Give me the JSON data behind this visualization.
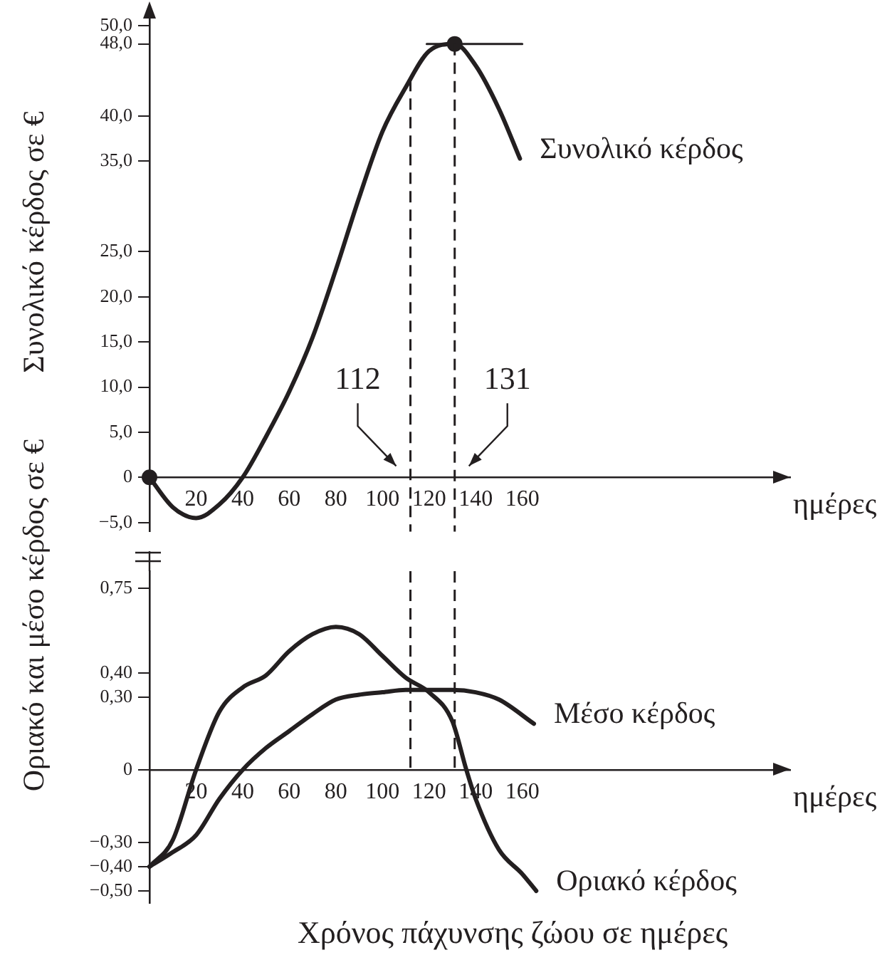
{
  "chart_data": [
    {
      "type": "line",
      "ylabel": "Συνολικό κέρδος σε €",
      "xlabel": "ημέρες",
      "xlim": [
        0,
        275
      ],
      "xticks": [
        20,
        40,
        60,
        80,
        100,
        120,
        140,
        160
      ],
      "ylim": [
        -6,
        51
      ],
      "yticks": [
        {
          "value": -5,
          "label": "−5,0"
        },
        0,
        {
          "value": 5,
          "label": "5,0"
        },
        {
          "value": 10,
          "label": "10,0"
        },
        {
          "value": 15,
          "label": "15,0"
        },
        {
          "value": 20,
          "label": "20,0"
        },
        {
          "value": 25,
          "label": "25,0"
        },
        {
          "value": 35,
          "label": "35,0"
        },
        {
          "value": 40,
          "label": "40,0"
        },
        {
          "value": 48,
          "label": "48,0"
        },
        {
          "value": 50,
          "label": "50,0"
        }
      ],
      "series": [
        {
          "name": "Συνολικό κέρδος",
          "type": "line",
          "color": "#231f20",
          "marker": "none",
          "x": [
            0,
            10,
            20,
            30,
            40,
            50,
            60,
            70,
            80,
            90,
            100,
            110,
            120,
            131,
            140,
            150,
            159
          ],
          "values": [
            0,
            -3.3,
            -4.5,
            -3,
            0,
            4.5,
            9.5,
            15.5,
            23,
            31,
            38.3,
            43.2,
            47.2,
            48,
            45.6,
            40.8,
            35.3
          ]
        },
        {
          "type": "line",
          "color": "#231f20",
          "marker": "none",
          "x": [
            119,
            160
          ],
          "values": [
            48,
            48
          ]
        },
        {
          "type": "scatter",
          "color": "#231f20",
          "marker": "circle",
          "x": [
            0,
            131
          ],
          "values": [
            0,
            48
          ]
        }
      ],
      "ref_lines": [
        {
          "axis": "x",
          "value": 112,
          "line_style": "dashed"
        },
        {
          "axis": "x",
          "value": 131,
          "line_style": "dashed"
        }
      ],
      "annotations": [
        {
          "text": "112",
          "x": 112,
          "y": 0
        },
        {
          "text": "131",
          "x": 131,
          "y": 0
        }
      ]
    },
    {
      "type": "line",
      "ylabel": "Οριακό και μέσο κέρδος σε €",
      "xlabel": "ημέρες",
      "xlim": [
        0,
        275
      ],
      "xticks": [
        20,
        40,
        60,
        80,
        100,
        120,
        140,
        160
      ],
      "ylim": [
        -0.55,
        0.82
      ],
      "yticks": [
        {
          "value": -0.5,
          "label": "−0,50"
        },
        {
          "value": -0.4,
          "label": "−0,40"
        },
        {
          "value": -0.3,
          "label": "−0,30"
        },
        0,
        {
          "value": 0.3,
          "label": "0,30"
        },
        {
          "value": 0.4,
          "label": "0,40"
        },
        {
          "value": 0.75,
          "label": "0,75"
        }
      ],
      "series": [
        {
          "name": "Μέσο κέρδος",
          "type": "line",
          "color": "#231f20",
          "marker": "none",
          "x": [
            0,
            10,
            20,
            30,
            40,
            50,
            60,
            70,
            80,
            90,
            100,
            110,
            120,
            130,
            140,
            150,
            165
          ],
          "values": [
            -0.4,
            -0.34,
            -0.27,
            -0.12,
            0,
            0.09,
            0.16,
            0.23,
            0.29,
            0.31,
            0.32,
            0.33,
            0.33,
            0.33,
            0.32,
            0.29,
            0.19
          ]
        },
        {
          "name": "Οριακό κέρδος",
          "type": "line",
          "color": "#231f20",
          "marker": "none",
          "x": [
            0,
            10,
            20,
            30,
            40,
            50,
            60,
            70,
            80,
            90,
            100,
            110,
            120,
            130,
            136,
            140,
            150,
            160,
            166
          ],
          "values": [
            -0.4,
            -0.29,
            0,
            0.24,
            0.34,
            0.39,
            0.49,
            0.56,
            0.59,
            0.56,
            0.47,
            0.38,
            0.32,
            0.2,
            0,
            -0.12,
            -0.33,
            -0.43,
            -0.5
          ]
        }
      ],
      "ref_lines": [
        {
          "axis": "x",
          "value": 112,
          "line_style": "dashed"
        },
        {
          "axis": "x",
          "value": 131,
          "line_style": "dashed"
        }
      ],
      "annotations": [
        "Χρόνος πάχυνσης ζώου σε ημέρες"
      ]
    }
  ]
}
